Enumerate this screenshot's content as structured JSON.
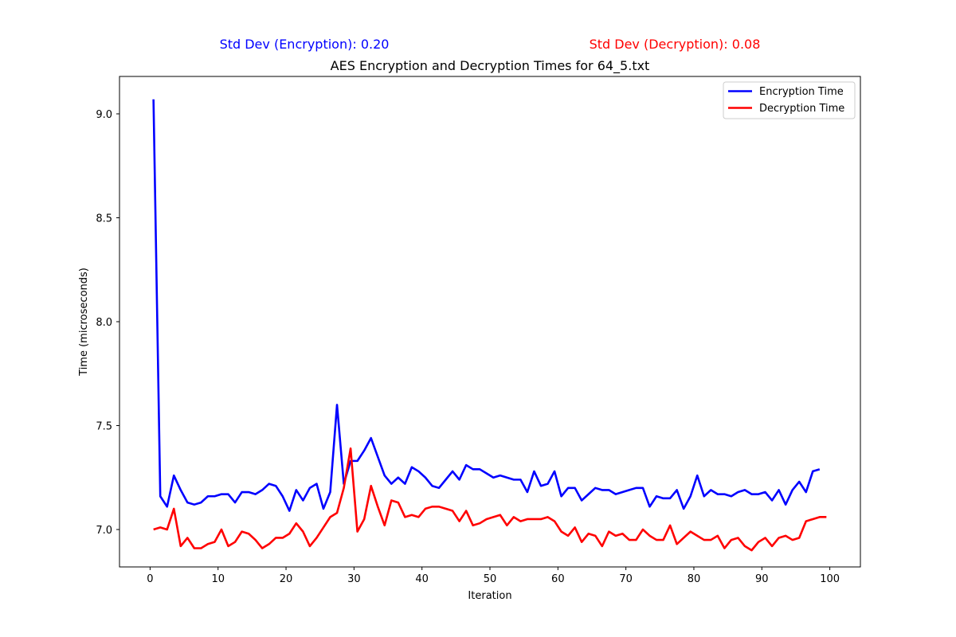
{
  "chart_data": {
    "type": "line",
    "title": "AES Encryption and Decryption Times for 64_5.txt",
    "xlabel": "Iteration",
    "ylabel": "Time (microseconds)",
    "xlim": [
      -4.5,
      104.5
    ],
    "ylim": [
      6.82,
      9.18
    ],
    "xticks": [
      0,
      10,
      20,
      30,
      40,
      50,
      60,
      70,
      80,
      90,
      100
    ],
    "yticks": [
      7.0,
      7.5,
      8.0,
      8.5,
      9.0
    ],
    "ytick_labels": [
      "7.0",
      "7.5",
      "8.0",
      "8.5",
      "9.0"
    ],
    "legend": {
      "placement": "top-right"
    },
    "grid": false,
    "stats": [
      {
        "label": "Std Dev (Encryption): 0.20",
        "color": "#0000ff"
      },
      {
        "label": "Std Dev (Decryption): 0.08",
        "color": "#ff0000"
      }
    ],
    "x_start": 0.5,
    "x_step": 1,
    "series": [
      {
        "name": "Encryption Time",
        "color": "#0000ff",
        "values": [
          9.07,
          7.16,
          7.11,
          7.26,
          7.19,
          7.13,
          7.12,
          7.13,
          7.16,
          7.16,
          7.17,
          7.17,
          7.13,
          7.18,
          7.18,
          7.17,
          7.19,
          7.22,
          7.21,
          7.16,
          7.09,
          7.19,
          7.14,
          7.2,
          7.22,
          7.1,
          7.18,
          7.6,
          7.22,
          7.33,
          7.33,
          7.38,
          7.44,
          7.35,
          7.26,
          7.22,
          7.25,
          7.22,
          7.3,
          7.28,
          7.25,
          7.21,
          7.2,
          7.24,
          7.28,
          7.24,
          7.31,
          7.29,
          7.29,
          7.27,
          7.25,
          7.26,
          7.25,
          7.24,
          7.24,
          7.18,
          7.28,
          7.21,
          7.22,
          7.28,
          7.16,
          7.2,
          7.2,
          7.14,
          7.17,
          7.2,
          7.19,
          7.19,
          7.17,
          7.18,
          7.19,
          7.2,
          7.2,
          7.11,
          7.16,
          7.15,
          7.15,
          7.19,
          7.1,
          7.16,
          7.26,
          7.16,
          7.19,
          7.17,
          7.17,
          7.16,
          7.18,
          7.19,
          7.17,
          7.17,
          7.18,
          7.14,
          7.19,
          7.12,
          7.19,
          7.23,
          7.18,
          7.28,
          7.29
        ]
      },
      {
        "name": "Decryption Time",
        "color": "#ff0000",
        "values": [
          7.0,
          7.01,
          7.0,
          7.1,
          6.92,
          6.96,
          6.91,
          6.91,
          6.93,
          6.94,
          7.0,
          6.92,
          6.94,
          6.99,
          6.98,
          6.95,
          6.91,
          6.93,
          6.96,
          6.96,
          6.98,
          7.03,
          6.99,
          6.92,
          6.96,
          7.01,
          7.06,
          7.08,
          7.2,
          7.39,
          6.99,
          7.05,
          7.21,
          7.11,
          7.02,
          7.14,
          7.13,
          7.06,
          7.07,
          7.06,
          7.1,
          7.11,
          7.11,
          7.1,
          7.09,
          7.04,
          7.09,
          7.02,
          7.03,
          7.05,
          7.06,
          7.07,
          7.02,
          7.06,
          7.04,
          7.05,
          7.05,
          7.05,
          7.06,
          7.04,
          6.99,
          6.97,
          7.01,
          6.94,
          6.98,
          6.97,
          6.92,
          6.99,
          6.97,
          6.98,
          6.95,
          6.95,
          7.0,
          6.97,
          6.95,
          6.95,
          7.02,
          6.93,
          6.96,
          6.99,
          6.97,
          6.95,
          6.95,
          6.97,
          6.91,
          6.95,
          6.96,
          6.92,
          6.9,
          6.94,
          6.96,
          6.92,
          6.96,
          6.97,
          6.95,
          6.96,
          7.04,
          7.05,
          7.06,
          7.06
        ]
      }
    ]
  }
}
